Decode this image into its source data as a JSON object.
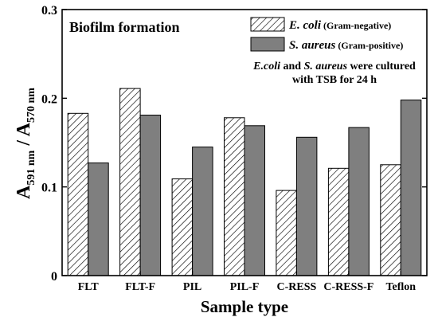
{
  "chart_data": {
    "type": "bar",
    "title": "Biofilm formation",
    "xlabel": "Sample type",
    "ylabel": {
      "main1": "A",
      "sub1": "591 nm",
      "sep": " / ",
      "main2": "A",
      "sub2": "570 nm"
    },
    "ylim": [
      0,
      0.3
    ],
    "yticks": [
      "0",
      "0.1",
      "0.2",
      "0.3"
    ],
    "ytick_values": [
      0,
      0.1,
      0.2,
      0.3
    ],
    "categories": [
      "FLT",
      "FLT-F",
      "PIL",
      "PIL-F",
      "C-RESS",
      "C-RESS-F",
      "Teflon"
    ],
    "series": [
      {
        "name": "E. coli (Gram-negative)",
        "legend_italic": "E. coli",
        "legend_rest": " (Gram-negative)",
        "pattern": "hatch",
        "fill": "#ffffff",
        "values": [
          0.183,
          0.211,
          0.109,
          0.178,
          0.096,
          0.121,
          0.125
        ]
      },
      {
        "name": "S. aureus (Gram-positive)",
        "legend_italic": "S. aureus",
        "legend_rest": " (Gram-positive)",
        "pattern": "solid",
        "fill": "#7f7f7f",
        "values": [
          0.127,
          0.181,
          0.145,
          0.169,
          0.156,
          0.167,
          0.198
        ]
      }
    ],
    "annotation": {
      "line1_italic_a": "E.coli",
      "line1_mid": " and ",
      "line1_italic_b": "S. aureus",
      "line1_end": " were cultured",
      "line2": "with TSB for 24 h"
    },
    "legend_position": "top-right",
    "grid": false
  }
}
